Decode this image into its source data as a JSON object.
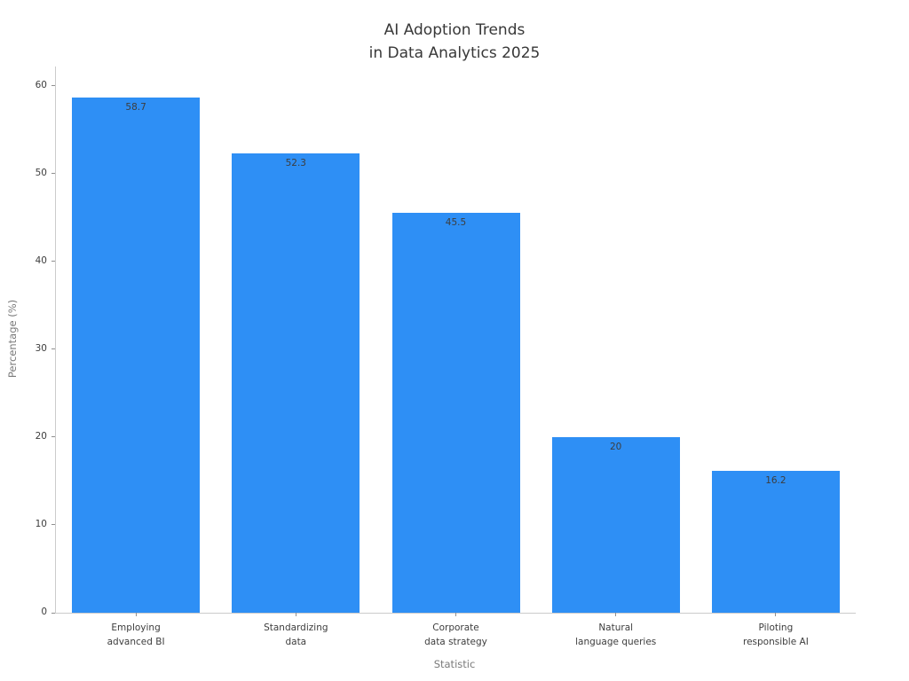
{
  "chart_data": {
    "type": "bar",
    "title": "AI Adoption Trends\nin Data Analytics 2025",
    "xlabel": "Statistic",
    "ylabel": "Percentage (%)",
    "categories": [
      "Employing\nadvanced BI",
      "Standardizing\ndata",
      "Corporate\ndata strategy",
      "Natural\nlanguage queries",
      "Piloting\nresponsible AI"
    ],
    "values": [
      58.7,
      52.3,
      45.5,
      20,
      16.2
    ],
    "value_labels": [
      "58.7",
      "52.3",
      "45.5",
      "20",
      "16.2"
    ],
    "yticks": [
      0,
      10,
      20,
      30,
      40,
      50,
      60
    ],
    "ylim": [
      0,
      62.2
    ],
    "grid": false,
    "legend_position": "none",
    "bar_color": "#2e8ff5",
    "bar_label_color": "#3d3d3d",
    "title_color": "#383838",
    "axis_label_color": "#7a7a7a",
    "tick_label_color": "#3d3d3d",
    "spine_color": "#cbcbcb"
  }
}
